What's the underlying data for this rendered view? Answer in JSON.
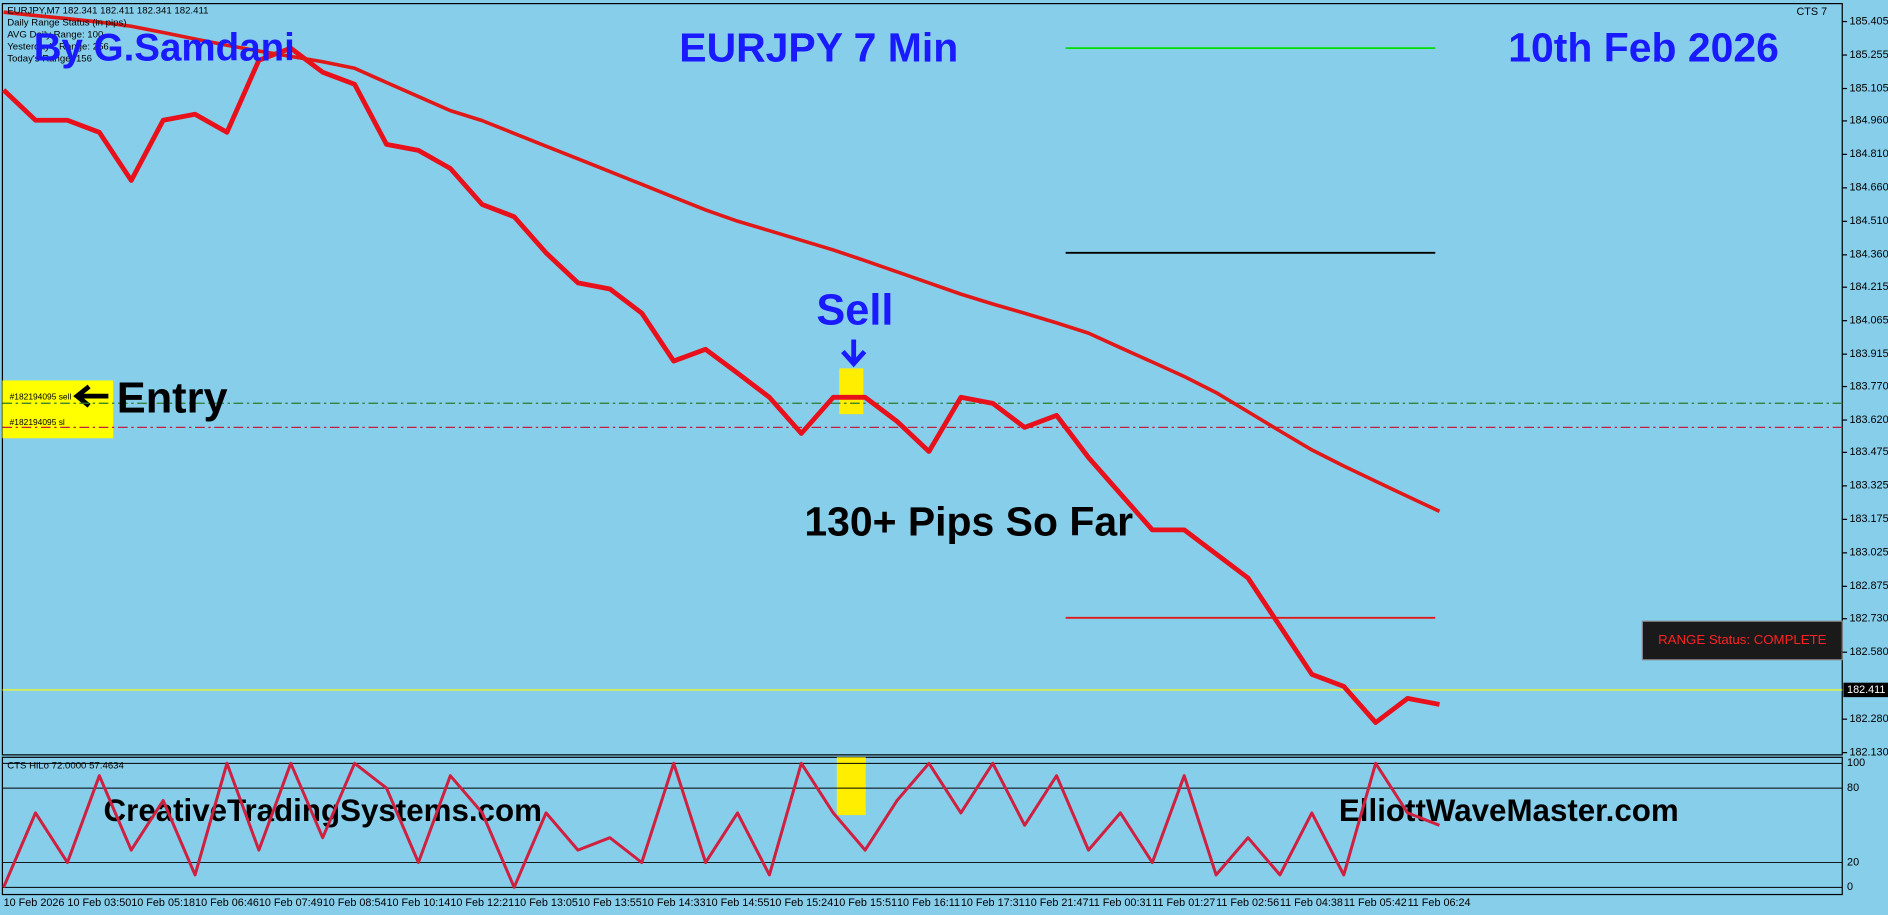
{
  "chart_data": [
    {
      "type": "line",
      "title": "EURJPY 7 Min",
      "header": [
        "EURJPY,M7  182.341 182.411 182.341 182.411",
        "Daily Range Status (in pips)",
        "AVG Daily Range: 100",
        "Yesterday's Range: 256",
        "Today's Range: 156"
      ],
      "corner_label": "CTS 7",
      "annotations": [
        "By G.Samdani",
        "10th Feb 2026",
        "Sell",
        "Entry",
        "130+ Pips So Far",
        "CreativeTradingSystems.com",
        "ElliottWaveMaster.com",
        "RANGE Status: COMPLETE"
      ],
      "order_labels": [
        "#182194095 sell",
        "#182194095 sl"
      ],
      "categories": [
        "10 Feb 2026",
        null,
        "10 Feb 03:50",
        null,
        "10 Feb 05:18",
        null,
        "10 Feb 06:46",
        null,
        "10 Feb 07:49",
        null,
        "10 Feb 08:54",
        null,
        "10 Feb 10:14",
        null,
        "10 Feb 12:21",
        null,
        "10 Feb 13:05",
        null,
        "10 Feb 13:55",
        null,
        "10 Feb 14:33",
        null,
        "10 Feb 14:55",
        null,
        "10 Feb 15:24",
        null,
        "10 Feb 15:51",
        null,
        "10 Feb 16:11",
        null,
        "10 Feb 17:31",
        null,
        "10 Feb 21:47",
        null,
        "11 Feb 00:31",
        null,
        "11 Feb 01:27",
        null,
        "11 Feb 02:56",
        null,
        "11 Feb 04:38",
        null,
        "11 Feb 05:42",
        null,
        "11 Feb 06:24",
        null
      ],
      "series": [
        {
          "name": "EURJPY",
          "color": "#e8101a",
          "values": [
            185.098,
            184.963,
            184.963,
            184.909,
            184.693,
            184.963,
            184.99,
            184.909,
            185.232,
            185.286,
            185.178,
            185.124,
            184.855,
            184.828,
            184.747,
            184.585,
            184.531,
            184.369,
            184.234,
            184.207,
            184.099,
            183.884,
            183.937,
            183.83,
            183.722,
            183.56,
            183.722,
            183.722,
            183.614,
            183.479,
            183.722,
            183.695,
            183.587,
            183.641,
            183.452,
            183.29,
            183.128,
            183.128,
            183.02,
            182.912,
            182.697,
            182.481,
            182.427,
            182.265,
            182.373,
            182.346
          ]
        },
        {
          "name": "Slow MA",
          "color": "#e01818",
          "values": [
            185.447,
            185.432,
            185.418,
            185.403,
            185.384,
            185.356,
            185.327,
            185.299,
            185.273,
            185.249,
            185.225,
            185.196,
            185.132,
            185.069,
            185.006,
            184.961,
            184.904,
            184.847,
            184.79,
            184.733,
            184.676,
            184.618,
            184.561,
            184.511,
            184.468,
            184.425,
            184.382,
            184.334,
            184.284,
            184.234,
            184.184,
            184.14,
            184.098,
            184.055,
            184.009,
            183.944,
            183.88,
            183.815,
            183.743,
            183.657,
            183.571,
            183.486,
            183.414,
            183.346,
            183.278,
            183.211
          ]
        }
      ],
      "levels": [
        {
          "value": 185.286,
          "color": "#00dd00",
          "style": "solid"
        },
        {
          "value": 184.369,
          "color": "#000000",
          "style": "solid"
        },
        {
          "value": 182.734,
          "color": "#e01818",
          "style": "solid"
        },
        {
          "value": 183.695,
          "color": "#2a7a2a",
          "style": "dash-dot"
        },
        {
          "value": 183.587,
          "color": "#c02040",
          "style": "dash-dot"
        }
      ],
      "current_price": {
        "value": 182.411,
        "label": "182.411"
      },
      "ylim": [
        182.12,
        185.48
      ],
      "yticks": [
        185.405,
        185.255,
        185.105,
        {
          "value": 184.96,
          "label": "184.960"
        },
        {
          "value": 184.81,
          "label": "184.810"
        },
        {
          "value": 184.66,
          "label": "184.660"
        },
        {
          "value": 184.51,
          "label": "184.510"
        },
        {
          "value": 184.36,
          "label": "184.360"
        },
        184.215,
        184.065,
        183.915,
        {
          "value": 183.77,
          "label": "183.770"
        },
        {
          "value": 183.62,
          "label": "183.620"
        },
        183.475,
        183.325,
        183.175,
        183.025,
        182.875,
        {
          "value": 182.73,
          "label": "182.730"
        },
        {
          "value": 182.58,
          "label": "182.580"
        },
        {
          "value": 182.28,
          "label": "182.280"
        },
        {
          "value": 182.13,
          "label": "182.130"
        }
      ]
    },
    {
      "type": "line",
      "title": "CTS HiLo 72.0000 57.4634",
      "series": [
        {
          "name": "CTS HiLo",
          "color": "#d02040",
          "values": [
            0,
            60,
            20,
            90,
            30,
            70,
            10,
            100,
            30,
            100,
            40,
            100,
            80,
            20,
            90,
            60,
            0,
            60,
            30,
            40,
            20,
            100,
            20,
            60,
            10,
            100,
            60,
            30,
            70,
            100,
            60,
            100,
            50,
            90,
            30,
            60,
            20,
            90,
            10,
            40,
            10,
            60,
            10,
            100,
            60,
            50
          ]
        }
      ],
      "ylim": [
        -5.8,
        104.9
      ],
      "yticks": [
        0,
        20,
        80,
        100
      ]
    }
  ]
}
